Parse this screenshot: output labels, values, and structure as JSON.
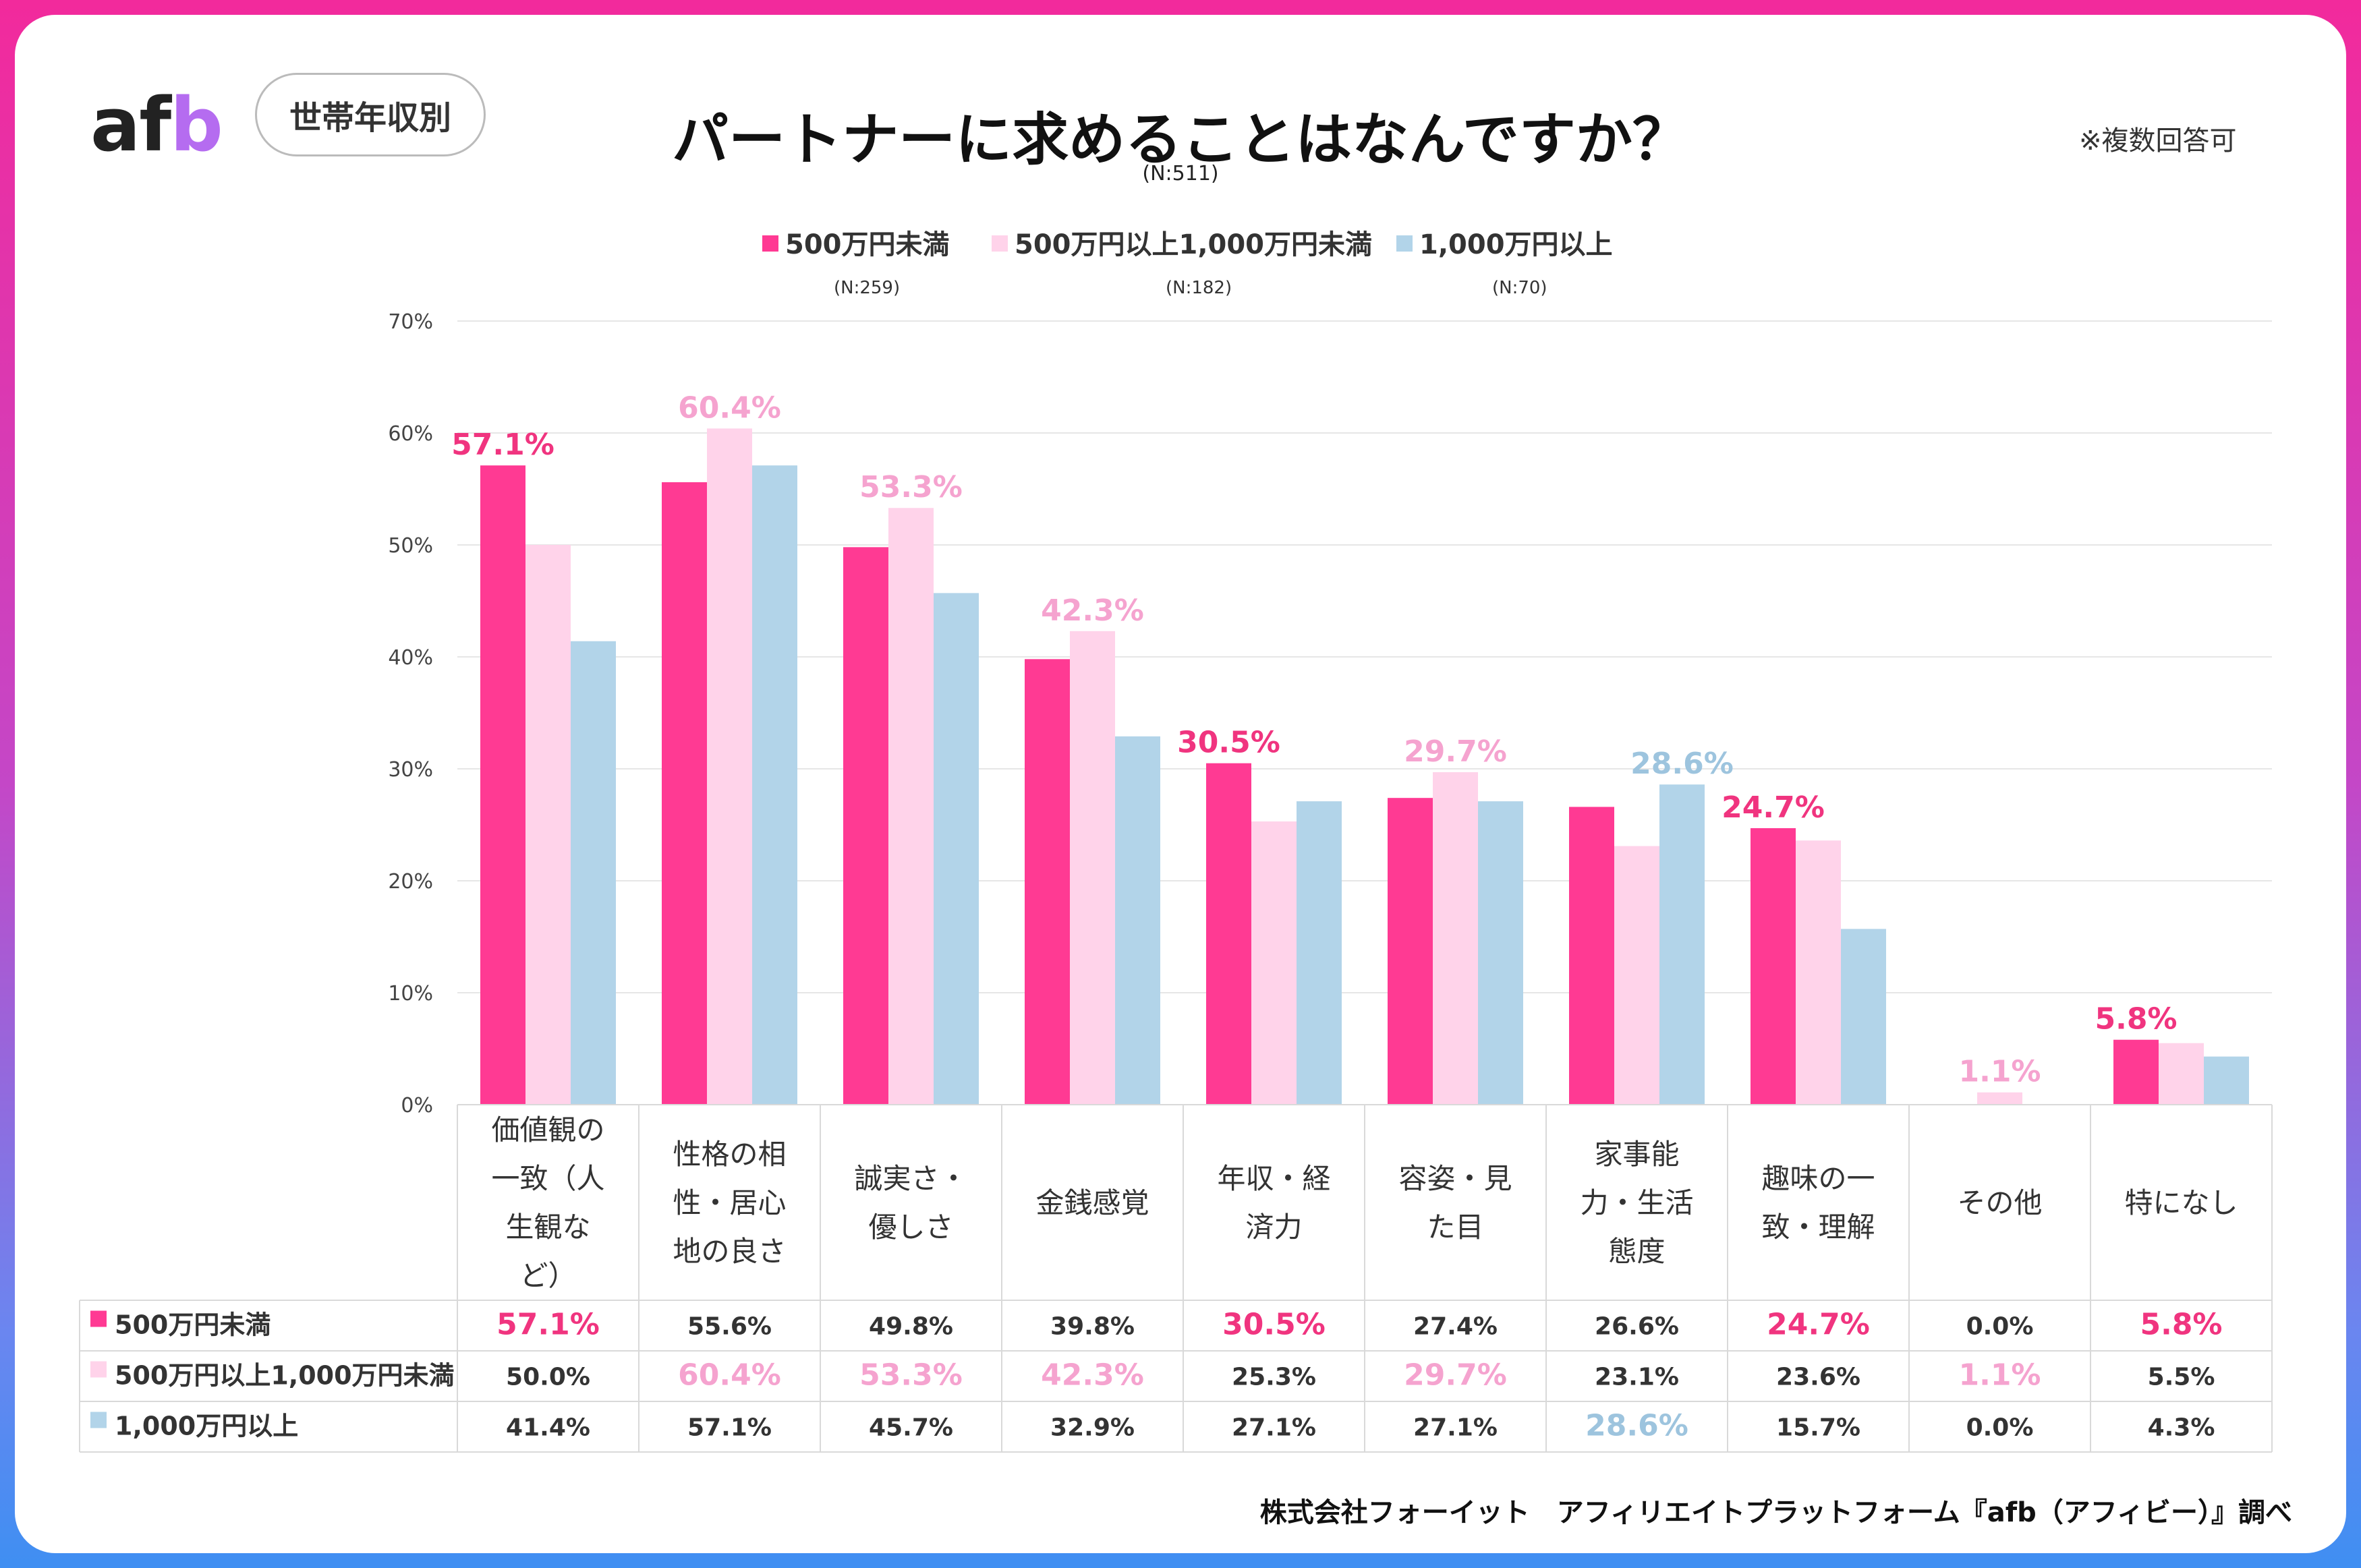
{
  "brand": {
    "logo_a": "af",
    "logo_b": "b",
    "badge": "世帯年収別"
  },
  "header": {
    "title": "パートナーに求めることはなんですか？",
    "sample": "(N:511)",
    "note": "※複数回答可"
  },
  "colors": {
    "s1": "#ff3a93",
    "s2": "#ffd3ea",
    "s3": "#b2d4e9",
    "label_s1": "#f0347f",
    "label_s2": "#f5a3cf",
    "label_s3": "#9dc4de"
  },
  "legend": [
    {
      "label": "500万円未満",
      "n": "(N:259)"
    },
    {
      "label": "500万円以上1,000万円未満",
      "n": "(N:182)"
    },
    {
      "label": "1,000万円以上",
      "n": "(N:70)"
    }
  ],
  "chart_data": {
    "type": "bar",
    "title": "パートナーに求めることはなんですか？",
    "ylim": [
      0,
      70
    ],
    "yticks": [
      0,
      10,
      20,
      30,
      40,
      50,
      60,
      70
    ],
    "ytick_labels": [
      "0%",
      "10%",
      "20%",
      "30%",
      "40%",
      "50%",
      "60%",
      "70%"
    ],
    "categories": [
      [
        "価値観の",
        "一致（人",
        "生観な",
        "ど）"
      ],
      [
        "性格の相",
        "性・居心",
        "地の良さ"
      ],
      [
        "誠実さ・",
        "優しさ"
      ],
      [
        "金銭感覚"
      ],
      [
        "年収・経",
        "済力"
      ],
      [
        "容姿・見",
        "た目"
      ],
      [
        "家事能",
        "力・生活",
        "態度"
      ],
      [
        "趣味の一",
        "致・理解"
      ],
      [
        "その他"
      ],
      [
        "特になし"
      ]
    ],
    "series": [
      {
        "name": "500万円未満",
        "values": [
          57.1,
          55.6,
          49.8,
          39.8,
          30.5,
          27.4,
          26.6,
          24.7,
          0.0,
          5.8
        ],
        "labels": [
          "57.1%",
          "55.6%",
          "49.8%",
          "39.8%",
          "30.5%",
          "27.4%",
          "26.6%",
          "24.7%",
          "0.0%",
          "5.8%"
        ]
      },
      {
        "name": "500万円以上1,000万円未満",
        "values": [
          50.0,
          60.4,
          53.3,
          42.3,
          25.3,
          29.7,
          23.1,
          23.6,
          1.1,
          5.5
        ],
        "labels": [
          "50.0%",
          "60.4%",
          "53.3%",
          "42.3%",
          "25.3%",
          "29.7%",
          "23.1%",
          "23.6%",
          "1.1%",
          "5.5%"
        ]
      },
      {
        "name": "1,000万円以上",
        "values": [
          41.4,
          57.1,
          45.7,
          32.9,
          27.1,
          27.1,
          28.6,
          15.7,
          0.0,
          4.3
        ],
        "labels": [
          "41.4%",
          "57.1%",
          "45.7%",
          "32.9%",
          "27.1%",
          "27.1%",
          "28.6%",
          "15.7%",
          "0.0%",
          "4.3%"
        ]
      }
    ],
    "highlights": [
      {
        "category": 0,
        "series": 0,
        "label": "57.1%"
      },
      {
        "category": 1,
        "series": 1,
        "label": "60.4%"
      },
      {
        "category": 2,
        "series": 1,
        "label": "53.3%"
      },
      {
        "category": 3,
        "series": 1,
        "label": "42.3%"
      },
      {
        "category": 4,
        "series": 0,
        "label": "30.5%"
      },
      {
        "category": 5,
        "series": 1,
        "label": "29.7%"
      },
      {
        "category": 6,
        "series": 2,
        "label": "28.6%"
      },
      {
        "category": 7,
        "series": 0,
        "label": "24.7%"
      },
      {
        "category": 8,
        "series": 1,
        "label": "1.1%"
      },
      {
        "category": 9,
        "series": 0,
        "label": "5.8%"
      }
    ]
  },
  "footer": "株式会社フォーイット　アフィリエイトプラットフォーム『afb（アフィビー）』調べ"
}
